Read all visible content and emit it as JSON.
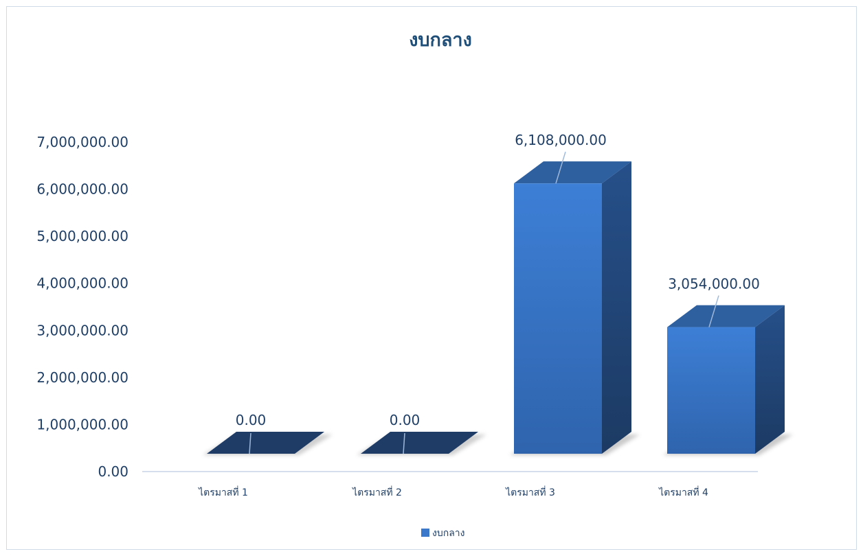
{
  "chart_data": {
    "type": "bar",
    "title": "งบกลาง",
    "categories": [
      "ไตรมาสที่ 1",
      "ไตรมาสที่ 2",
      "ไตรมาสที่ 3",
      "ไตรมาสที่ 4"
    ],
    "series": [
      {
        "name": "งบกลาง",
        "values": [
          0,
          0,
          6108000,
          3054000
        ],
        "labels": [
          "0.00",
          "0.00",
          "6,108,000.00",
          "3,054,000.00"
        ]
      }
    ],
    "y_ticks": [
      "0.00",
      "1,000,000.00",
      "2,000,000.00",
      "3,000,000.00",
      "4,000,000.00",
      "5,000,000.00",
      "6,000,000.00",
      "7,000,000.00"
    ],
    "ylim": [
      0,
      7000000
    ],
    "xlabel": "",
    "ylabel": "",
    "grid": false,
    "legend_position": "bottom",
    "style": "3d-column",
    "colors": {
      "bar_front": "#3b78cc",
      "bar_top": "#2e5f9e",
      "bar_side": "#234a7d",
      "bar_base": "#1f3c66",
      "axis_line": "#c5d3e6",
      "text": "#1f3f66",
      "title": "#1f4e79"
    }
  }
}
